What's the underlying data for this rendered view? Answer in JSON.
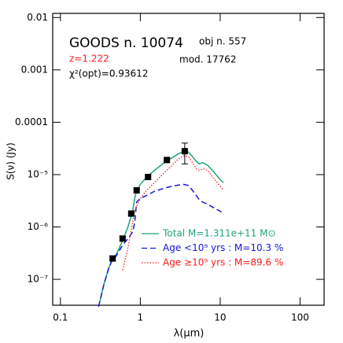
{
  "chart_data": {
    "type": "line",
    "xlabel": "λ(μm)",
    "ylabel": "S(ν) (Jy)",
    "xscale": "log",
    "yscale": "log",
    "xlim": [
      0.08,
      200
    ],
    "ylim": [
      3.2e-08,
      0.012
    ],
    "xticks": [
      0.1,
      1,
      10,
      100
    ],
    "yticks": [
      0.01,
      0.001,
      0.0001,
      {
        "value": 1e-05,
        "label": "10⁻⁵"
      },
      {
        "value": 1e-06,
        "label": "10⁻⁶"
      },
      {
        "value": 1e-07,
        "label": "10⁻⁷"
      }
    ],
    "legend": "lower right",
    "annotations": [
      {
        "text": "GOODS n. 10074",
        "color": "#000000"
      },
      {
        "text": "obj n. 557",
        "color": "#000000"
      },
      {
        "text": "z=1.222",
        "color": "#ff1a1a"
      },
      {
        "text": "mod. 17762",
        "color": "#000000"
      },
      {
        "text": "χ²(opt)=0.93612",
        "color": "#000000"
      }
    ],
    "x": [
      0.3,
      0.35,
      0.4,
      0.45,
      0.5,
      0.6,
      0.7,
      0.8,
      0.85,
      0.9,
      1.0,
      1.2,
      1.5,
      2,
      2.5,
      3,
      3.5,
      4,
      4.5,
      5,
      5.5,
      6,
      7,
      8,
      10,
      11
    ],
    "series": [
      {
        "name": "Total M=1.311e+11 M⊙",
        "color": "#1fa37a",
        "style": "solid",
        "values": [
          3e-08,
          8e-08,
          1.6e-07,
          2.5e-07,
          3e-07,
          5.5e-07,
          1e-06,
          2e-06,
          3.5e-06,
          5e-06,
          6.5e-06,
          9e-06,
          1.2e-05,
          1.7e-05,
          2.1e-05,
          2.5e-05,
          2.8e-05,
          2.7e-05,
          2.2e-05,
          1.8e-05,
          1.6e-05,
          1.7e-05,
          1.5e-05,
          1.2e-05,
          8e-06,
          7e-06
        ]
      },
      {
        "name": "Age <10⁹ yrs : M=10.3 %",
        "color": "#1515e0",
        "style": "dashed",
        "values": [
          3e-08,
          8e-08,
          1.6e-07,
          2.4e-07,
          2.8e-07,
          4.5e-07,
          6e-07,
          8e-07,
          1.2e-06,
          3e-06,
          3.5e-06,
          4e-06,
          4.8e-06,
          5.5e-06,
          6e-06,
          6.3e-06,
          6.5e-06,
          6.2e-06,
          5e-06,
          4e-06,
          3.3e-06,
          3e-06,
          2.7e-06,
          2.4e-06,
          2e-06,
          1.8e-06
        ]
      },
      {
        "name": "Age ≥10⁹ yrs : M=89.6 %",
        "color": "#ff1a1a",
        "style": "dotted",
        "values": [
          null,
          null,
          null,
          null,
          null,
          1.5e-07,
          4e-07,
          1.2e-06,
          2e-06,
          2.5e-06,
          3.5e-06,
          5e-06,
          7e-06,
          1.1e-05,
          1.5e-05,
          2e-05,
          2.3e-05,
          2.2e-05,
          1.7e-05,
          1.3e-05,
          1.2e-05,
          1.3e-05,
          1.2e-05,
          9e-06,
          6e-06,
          5e-06
        ]
      }
    ],
    "points": {
      "color": "#000000",
      "x": [
        0.45,
        0.6,
        0.77,
        0.9,
        1.25,
        2.15,
        3.6
      ],
      "values": [
        2.5e-07,
        6e-07,
        1.8e-06,
        5e-06,
        9e-06,
        1.9e-05,
        2.8e-05
      ],
      "yerr": [
        2.5e-08,
        6e-08,
        1.8e-07,
        5e-07,
        9e-07,
        1.9e-06,
        1.2e-05
      ]
    }
  }
}
